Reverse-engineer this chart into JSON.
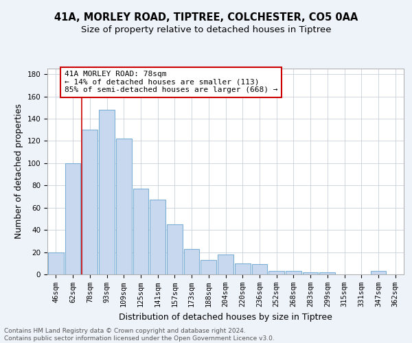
{
  "title_line1": "41A, MORLEY ROAD, TIPTREE, COLCHESTER, CO5 0AA",
  "title_line2": "Size of property relative to detached houses in Tiptree",
  "xlabel": "Distribution of detached houses by size in Tiptree",
  "ylabel": "Number of detached properties",
  "categories": [
    "46sqm",
    "62sqm",
    "78sqm",
    "93sqm",
    "109sqm",
    "125sqm",
    "141sqm",
    "157sqm",
    "173sqm",
    "188sqm",
    "204sqm",
    "220sqm",
    "236sqm",
    "252sqm",
    "268sqm",
    "283sqm",
    "299sqm",
    "315sqm",
    "331sqm",
    "347sqm",
    "362sqm"
  ],
  "values": [
    20,
    100,
    130,
    148,
    122,
    77,
    67,
    45,
    23,
    13,
    18,
    10,
    9,
    3,
    3,
    2,
    2,
    0,
    0,
    3,
    0
  ],
  "bar_color": "#c8d9ef",
  "bar_edge_color": "#7bafd4",
  "highlight_bar_index": 2,
  "annotation_text": "41A MORLEY ROAD: 78sqm\n← 14% of detached houses are smaller (113)\n85% of semi-detached houses are larger (668) →",
  "annotation_box_edge_color": "#cc0000",
  "vline_color": "#cc0000",
  "ylim": [
    0,
    185
  ],
  "yticks": [
    0,
    20,
    40,
    60,
    80,
    100,
    120,
    140,
    160,
    180
  ],
  "footer_text": "Contains HM Land Registry data © Crown copyright and database right 2024.\nContains public sector information licensed under the Open Government Licence v3.0.",
  "background_color": "#eef2f9",
  "plot_background_color": "#ffffff",
  "grid_color": "#c8d0dc",
  "title_fontsize": 10.5,
  "subtitle_fontsize": 9.5,
  "tick_fontsize": 7.5,
  "label_fontsize": 9,
  "footer_fontsize": 6.5
}
